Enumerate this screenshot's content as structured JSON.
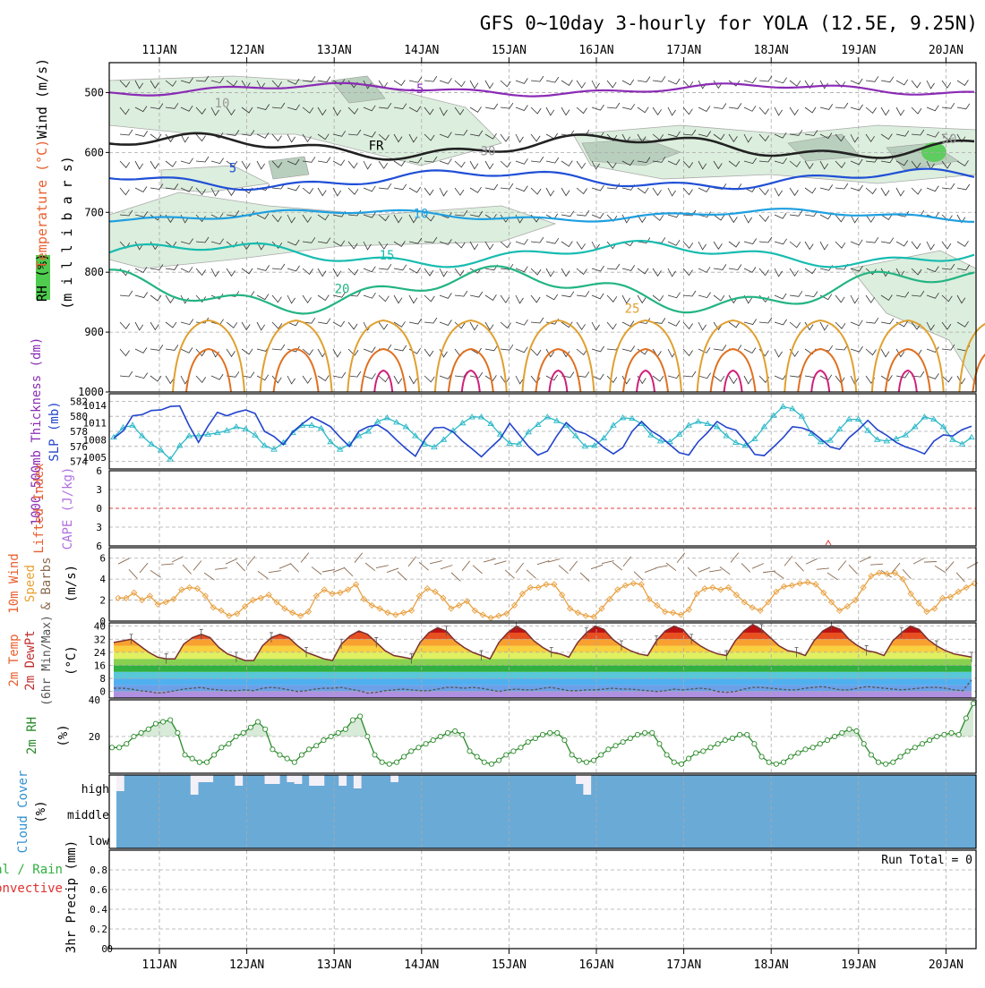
{
  "title": "GFS 0~10day 3-hourly for YOLA (12.5E, 9.25N)",
  "dates": [
    "11JAN",
    "12JAN",
    "13JAN",
    "14JAN",
    "15JAN",
    "16JAN",
    "17JAN",
    "18JAN",
    "19JAN",
    "20JAN"
  ],
  "colors": {
    "grid": "#aaaaaa",
    "frame": "#000000",
    "purple": "#8a2bb5",
    "blue": "#1f4fd6",
    "lightblue": "#1f9fe0",
    "teal": "#18bcb0",
    "green": "#23b483",
    "orange": "#e0a030",
    "darkorange": "#e07020",
    "magenta": "#d0207a",
    "thickness": "#2ab8c8",
    "slp": "#2244cc",
    "wind": "#e8a040",
    "barb": "#8a6a50",
    "rh": "#2a8a2a",
    "cloud": "#6aaad6",
    "cloudgap": "#f4f0f8"
  },
  "chart_data": [
    {
      "type": "heatmap",
      "title": "GFS 0~10day 3-hourly for YOLA (12.5E, 9.25N)",
      "ylabel_parts": [
        "RH (%)",
        "Temperature (°C)",
        "Wind (m/s)"
      ],
      "ylabel2": "(m i l l i b a r s)",
      "yticks": [
        500,
        600,
        700,
        800,
        900,
        1000
      ],
      "ylim": [
        450,
        1000
      ],
      "contour_labels": [
        {
          "text": "-5",
          "value": -5
        },
        {
          "text": "FR",
          "value": 0
        },
        {
          "text": "5",
          "value": 5
        },
        {
          "text": "10",
          "value": 10
        },
        {
          "text": "15",
          "value": 15
        },
        {
          "text": "20",
          "value": 20
        },
        {
          "text": "25",
          "value": 25
        },
        {
          "text": "10",
          "value": 10
        },
        {
          "text": "30",
          "value": 30
        },
        {
          "text": "50",
          "value": 50
        }
      ],
      "isotherm_levels_mb": {
        "-5": 495,
        "0": 590,
        "5": 645,
        "10": 705,
        "15": 770,
        "20": 830
      }
    },
    {
      "type": "line",
      "ylabel_left": "1000-500mb Thickness (dm)",
      "ylabel_right": "SLP (mb)",
      "yticks_left": [
        574,
        576,
        578,
        580,
        582
      ],
      "yticks_right": [
        1005,
        1008,
        1011,
        1014
      ],
      "ylim_left": [
        573,
        583
      ],
      "series": [
        {
          "name": "Thickness",
          "values": [
            577.2,
            578.5,
            578.8,
            577.4,
            576.3,
            575.5,
            574.3,
            576.1,
            577.4,
            577.4,
            577.6,
            577.8,
            578.1,
            578.6,
            578.3,
            577.5,
            576.1,
            575.6,
            576.5,
            577.8,
            578.8,
            578.8,
            578.4,
            576.6,
            575.6,
            576.3,
            577.4,
            578.0,
            579.3,
            579.8,
            579.2,
            578.6,
            577.4,
            576.3,
            575.9,
            576.9,
            578.1,
            579.1,
            579.9,
            579.9,
            579.0,
            577.6,
            576.4,
            576.3,
            577.9,
            578.9,
            579.9,
            579.4,
            578.8,
            577.4,
            576.0,
            576.1,
            577.1,
            578.8,
            579.8,
            579.7,
            579.0,
            577.5,
            576.7,
            576.6,
            577.6,
            578.8,
            579.3,
            579.0,
            578.6,
            577.4,
            576.5,
            576.1,
            577.0,
            578.6,
            580.1,
            581.3,
            581.0,
            580.0,
            577.7,
            576.6,
            576.8,
            578.3,
            579.6,
            579.6,
            578.1,
            576.9,
            576.7,
            577.0,
            577.5,
            578.6,
            579.9,
            579.6,
            578.6,
            576.9,
            576.3,
            577.2
          ]
        },
        {
          "name": "SLP",
          "values": [
            1008.3,
            1009.6,
            1012.2,
            1012.4,
            1013.1,
            1013.2,
            1013.8,
            1013.9,
            1010.5,
            1007.6,
            1010.4,
            1012.8,
            1012.2,
            1012.8,
            1013.2,
            1012.6,
            1009.5,
            1008.6,
            1007.2,
            1009.4,
            1010.8,
            1012.0,
            1011.2,
            1010.3,
            1008.5,
            1006.9,
            1009.5,
            1010.3,
            1010.6,
            1009.6,
            1008.0,
            1006.5,
            1005.2,
            1008.1,
            1010.1,
            1010.2,
            1009.4,
            1007.8,
            1006.5,
            1005.1,
            1006.7,
            1008.2,
            1010.9,
            1008.9,
            1006.9,
            1005.4,
            1006.1,
            1008.7,
            1011.0,
            1009.6,
            1009.1,
            1008.1,
            1006.7,
            1005.6,
            1006.7,
            1009.5,
            1011.2,
            1009.6,
            1008.6,
            1007.2,
            1005.8,
            1005.4,
            1007.7,
            1009.3,
            1011.2,
            1010.2,
            1009.7,
            1007.8,
            1005.5,
            1005.3,
            1006.8,
            1008.4,
            1010.3,
            1010.1,
            1009.5,
            1008.2,
            1006.8,
            1006.4,
            1008.4,
            1009.8,
            1011.4,
            1009.8,
            1008.8,
            1007.6,
            1006.8,
            1006.3,
            1005.6,
            1007.8,
            1008.9,
            1008.7,
            1009.8,
            1010.4
          ]
        }
      ]
    },
    {
      "type": "line",
      "ylabel_parts": [
        "Lifted Index",
        "CAPE (J/kg)"
      ],
      "yticks": [
        -6,
        -3,
        0,
        3,
        6
      ],
      "ylim": [
        -6,
        6
      ],
      "zero_line": 0
    },
    {
      "type": "line",
      "ylabel_parts": [
        "10m Wind",
        "Speed",
        "& Barbs"
      ],
      "ylabel_unit": "(m/s)",
      "yticks": [
        0,
        2,
        4,
        6
      ],
      "ylim": [
        0,
        7
      ],
      "series": [
        {
          "name": "10m Wind Speed",
          "values": [
            2.2,
            2.2,
            2.7,
            2.0,
            2.4,
            1.6,
            1.8,
            2.1,
            3.0,
            3.2,
            3.1,
            2.4,
            1.3,
            1.0,
            0.5,
            0.7,
            1.4,
            2.0,
            2.2,
            2.5,
            1.8,
            1.2,
            0.8,
            0.5,
            0.9,
            2.4,
            3.0,
            2.6,
            2.7,
            3.0,
            3.5,
            2.1,
            1.5,
            1.2,
            0.8,
            0.6,
            0.8,
            1.0,
            2.4,
            3.1,
            2.8,
            2.2,
            1.2,
            1.5,
            1.9,
            1.0,
            0.6,
            0.3,
            0.5,
            0.7,
            1.5,
            2.6,
            3.2,
            3.2,
            3.5,
            3.5,
            2.5,
            1.2,
            0.8,
            0.5,
            0.4,
            1.2,
            2.1,
            3.0,
            3.4,
            3.6,
            3.5,
            2.1,
            1.5,
            0.9,
            0.8,
            0.6,
            1.1,
            2.6,
            3.1,
            3.2,
            3.0,
            3.2,
            2.5,
            1.8,
            1.3,
            1.0,
            1.8,
            2.8,
            3.3,
            3.4,
            3.6,
            3.7,
            3.5,
            2.7,
            1.8,
            1.0,
            1.4,
            2.0,
            3.2,
            4.3,
            4.6,
            4.5,
            4.6,
            4.0,
            2.6,
            1.7,
            0.9,
            1.2,
            2.2,
            2.3,
            2.8,
            3.2,
            3.6
          ]
        }
      ]
    },
    {
      "type": "area",
      "ylabel_parts": [
        "2m Temp",
        "2m DewPt",
        "(6hr Min/Max)"
      ],
      "ylabel_unit": "(°C)",
      "yticks": [
        0,
        8,
        16,
        24,
        32,
        40
      ],
      "ylim": [
        -4,
        42
      ],
      "series": [
        {
          "name": "2m Temp",
          "values": [
            30,
            31,
            32,
            28,
            24,
            21,
            20,
            20,
            29,
            33,
            35,
            33,
            27,
            23,
            21,
            19,
            19,
            28,
            33,
            35,
            33,
            28,
            24,
            22,
            20,
            19,
            29,
            34,
            37,
            35,
            30,
            25,
            22,
            21,
            20,
            30,
            36,
            39,
            37,
            31,
            27,
            24,
            22,
            20,
            30,
            36,
            40,
            37,
            31,
            27,
            24,
            23,
            21,
            30,
            36,
            40,
            38,
            32,
            28,
            25,
            23,
            22,
            31,
            37,
            40,
            38,
            32,
            28,
            25,
            23,
            22,
            31,
            37,
            41,
            38,
            33,
            28,
            25,
            24,
            22,
            31,
            37,
            40,
            38,
            32,
            28,
            25,
            24,
            22,
            31,
            36,
            40,
            38,
            32,
            28,
            25,
            23,
            22,
            21
          ]
        },
        {
          "name": "2m DewPt",
          "values": [
            2,
            2,
            1.5,
            0.5,
            0,
            -1,
            -0.5,
            0.5,
            1.5,
            2,
            2.5,
            1.5,
            1,
            0.5,
            0.5,
            1,
            0.5,
            2,
            2.5,
            2,
            1,
            0,
            0.5,
            1.5,
            2,
            2,
            2.5,
            1.5,
            0.5,
            -1,
            -0.5,
            0.5,
            1,
            1.5,
            1,
            0.5,
            0.5,
            1.5,
            2.5,
            2.5,
            2,
            2.5,
            2,
            1,
            0,
            1,
            1.5,
            1,
            1,
            2,
            2.5,
            1.5,
            0.5,
            0.5,
            1,
            1,
            1.5,
            2,
            1.5,
            1.5,
            1,
            0.5,
            0,
            0.5,
            1.5,
            1,
            1.5,
            2,
            1.5,
            0,
            -0.5,
            0,
            1.5,
            2.5,
            2.5,
            2,
            1.5,
            1,
            1,
            2,
            2.5,
            3,
            2,
            1,
            1,
            2,
            3,
            2.5,
            2,
            1.5,
            1,
            1.5,
            2,
            2.5,
            2.5,
            2,
            1,
            0.5,
            7
          ]
        }
      ]
    },
    {
      "type": "area",
      "ylabel": "2m RH",
      "ylabel_unit": "(%)",
      "yticks": [
        20,
        40
      ],
      "ylim": [
        0,
        40
      ],
      "series": [
        {
          "name": "2m RH",
          "values": [
            14,
            14,
            16,
            20,
            22,
            24,
            27,
            28,
            29,
            22,
            10,
            8,
            6,
            6,
            10,
            14,
            16,
            20,
            22,
            25,
            28,
            24,
            13,
            10,
            8,
            6,
            10,
            13,
            15,
            18,
            20,
            22,
            24,
            29,
            31,
            20,
            10,
            6,
            5,
            6,
            9,
            12,
            14,
            16,
            18,
            20,
            22,
            23,
            21,
            12,
            9,
            6,
            5,
            7,
            10,
            12,
            14,
            17,
            19,
            21,
            22,
            22,
            18,
            10,
            7,
            6,
            7,
            10,
            13,
            15,
            17,
            19,
            21,
            22,
            22,
            16,
            10,
            6,
            5,
            8,
            11,
            12,
            14,
            16,
            18,
            19,
            21,
            21,
            16,
            9,
            6,
            5,
            6,
            9,
            11,
            13,
            14,
            16,
            18,
            20,
            22,
            24,
            23,
            16,
            10,
            6,
            5,
            6,
            9,
            12,
            14,
            16,
            18,
            20,
            21,
            22,
            21,
            30,
            38
          ]
        }
      ]
    },
    {
      "type": "heatmap",
      "ylabel_parts": [
        "Cloud Cover",
        "(%)"
      ],
      "yticks": [
        "high",
        "middle",
        "low"
      ],
      "series": [
        {
          "name": "high cloud gap",
          "values": [
            18,
            0,
            0,
            0,
            0,
            0,
            0,
            0,
            0,
            0,
            22,
            8,
            8,
            0,
            0,
            0,
            12,
            0,
            0,
            0,
            10,
            10,
            0,
            8,
            10,
            0,
            12,
            12,
            0,
            0,
            12,
            0,
            15,
            0,
            0,
            0,
            0,
            8,
            0,
            0,
            0,
            0,
            0,
            0,
            0,
            0,
            0,
            0,
            0,
            0,
            0,
            0,
            0,
            0,
            0,
            0,
            0,
            0,
            0,
            0,
            0,
            0,
            10,
            22,
            0,
            0,
            0,
            0,
            0,
            0,
            0,
            0,
            0,
            0,
            0,
            0,
            0,
            0,
            0,
            0,
            0,
            0,
            0,
            0,
            0,
            0,
            0,
            0,
            0,
            0,
            0,
            0,
            0,
            0,
            0,
            0,
            0,
            0,
            0,
            0,
            0,
            0,
            0,
            0,
            0,
            0,
            0,
            0,
            0,
            0,
            0,
            0,
            0,
            0,
            0,
            0
          ]
        }
      ]
    },
    {
      "type": "bar",
      "ylabel_parts": [
        "Total / Rain",
        "Convective"
      ],
      "ylabel_right": "3hr Precip (mm)",
      "yticks": [
        0,
        0.2,
        0.4,
        0.6,
        0.8
      ],
      "ylim": [
        0,
        1
      ],
      "annotation": "Run Total = 0",
      "values": []
    }
  ]
}
